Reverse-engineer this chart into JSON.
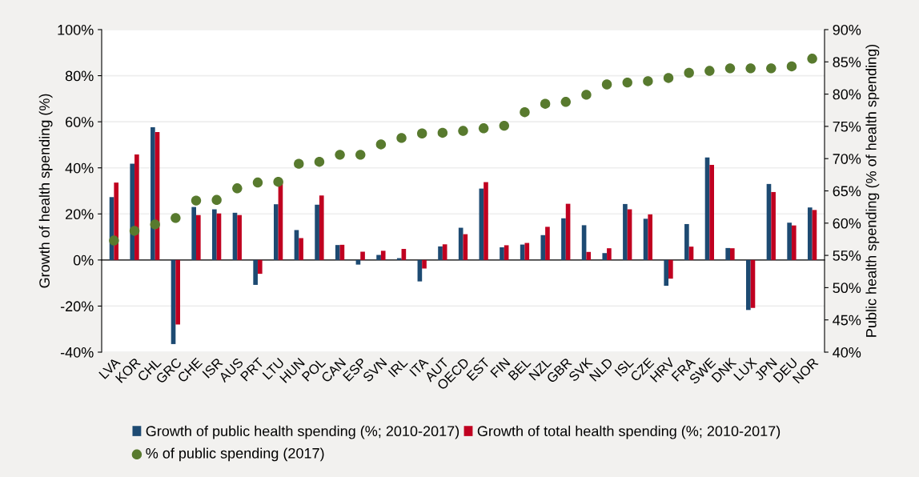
{
  "chart_data": {
    "type": "bar",
    "categories": [
      "LVA",
      "KOR",
      "CHL",
      "GRC",
      "CHE",
      "ISR",
      "AUS",
      "PRT",
      "LTU",
      "HUN",
      "POL",
      "CAN",
      "ESP",
      "SVN",
      "IRL",
      "ITA",
      "AUT",
      "OECD",
      "EST",
      "FIN",
      "BEL",
      "NZL",
      "GBR",
      "SVK",
      "NLD",
      "ISL",
      "CZE",
      "HRV",
      "FRA",
      "SWE",
      "DNK",
      "LUX",
      "JPN",
      "DEU",
      "NOR"
    ],
    "series": [
      {
        "name": "Growth of public health spending (%; 2010-2017)",
        "color": "#1d4a72",
        "values": [
          27.3,
          41.8,
          57.6,
          -36.5,
          23,
          22,
          20.5,
          -10.8,
          24.2,
          13,
          24,
          6.5,
          -2,
          2.2,
          0.8,
          -9.3,
          5.9,
          14,
          31,
          5.5,
          6.7,
          10.8,
          18.1,
          15.1,
          3,
          24.3,
          17.9,
          -11.2,
          15.6,
          44.5,
          5.2,
          -21.7,
          33,
          16.2,
          22.8
        ]
      },
      {
        "name": "Growth of total health spending (%; 2010-2017)",
        "color": "#c00020",
        "values": [
          33.6,
          45.8,
          55.5,
          -28,
          19.5,
          20.2,
          19.5,
          -6,
          34.2,
          9.5,
          28,
          6.6,
          3.6,
          4,
          4.8,
          -3.7,
          6.8,
          11.2,
          33.8,
          6.4,
          7.4,
          14.4,
          24.4,
          3.5,
          5.1,
          22,
          19.8,
          -8.1,
          5.8,
          41.3,
          5.1,
          -20.8,
          29.5,
          15,
          21.7
        ]
      },
      {
        "name": "% of public spending (2017)",
        "color": "#587a2e",
        "type": "scatter",
        "axis": "y2",
        "values": [
          57.3,
          58.8,
          59.8,
          60.8,
          63.5,
          63.6,
          65.4,
          66.3,
          66.4,
          69.2,
          69.5,
          70.6,
          70.6,
          72.2,
          73.2,
          73.9,
          74.0,
          74.3,
          74.7,
          75.1,
          77.2,
          78.5,
          78.8,
          79.9,
          81.5,
          81.8,
          82.0,
          82.5,
          83.3,
          83.6,
          84.0,
          84.0,
          84.0,
          84.3,
          85.5
        ]
      }
    ],
    "ylabel": "Growth of health spending (%)",
    "y2label": "Public health spending (% of health spending)",
    "ylim": [
      -40,
      100
    ],
    "yticks": [
      {
        "value": -40,
        "label": "-40%"
      },
      {
        "value": -20,
        "label": "-20%"
      },
      {
        "value": 0,
        "label": "0%"
      },
      {
        "value": 20,
        "label": "20%"
      },
      {
        "value": 40,
        "label": "40%"
      },
      {
        "value": 60,
        "label": "60%"
      },
      {
        "value": 80,
        "label": "80%"
      },
      {
        "value": 100,
        "label": "100%"
      }
    ],
    "y2lim": [
      40,
      90
    ],
    "y2ticks": [
      {
        "value": 40,
        "label": "40%"
      },
      {
        "value": 45,
        "label": "45%"
      },
      {
        "value": 50,
        "label": "50%"
      },
      {
        "value": 55,
        "label": "55%"
      },
      {
        "value": 60,
        "label": "60%"
      },
      {
        "value": 65,
        "label": "65%"
      },
      {
        "value": 70,
        "label": "70%"
      },
      {
        "value": 75,
        "label": "75%"
      },
      {
        "value": 80,
        "label": "80%"
      },
      {
        "value": 85,
        "label": "85%"
      },
      {
        "value": 90,
        "label": "90%"
      }
    ],
    "grid": "y",
    "legend": "bottom",
    "marker": "circle"
  }
}
